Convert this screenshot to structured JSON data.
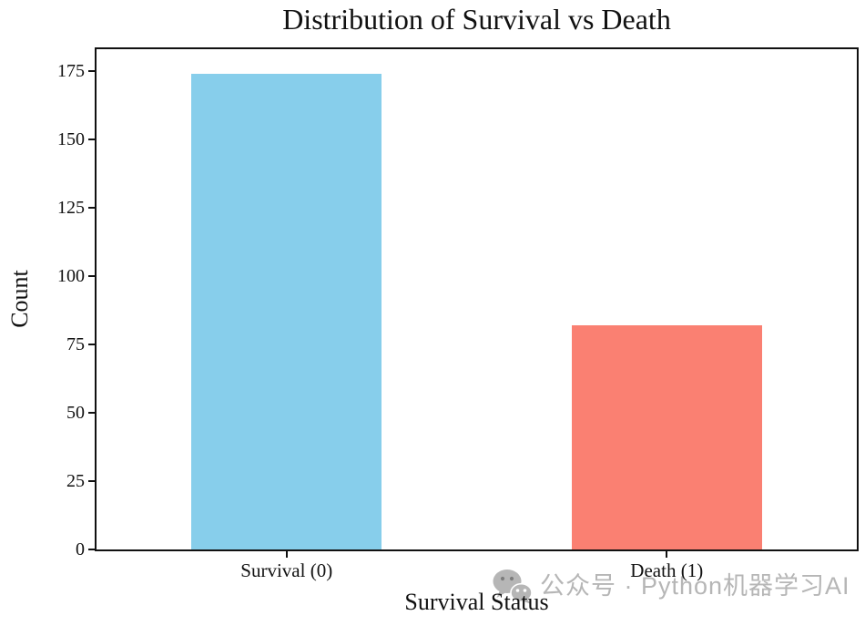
{
  "chart_data": {
    "type": "bar",
    "title": "Distribution of Survival vs Death",
    "xlabel": "Survival Status",
    "ylabel": "Count",
    "categories": [
      "Survival (0)",
      "Death (1)"
    ],
    "values": [
      174,
      82
    ],
    "bar_colors": [
      "#87CEEB",
      "#FA8072"
    ],
    "yticks": [
      0,
      25,
      50,
      75,
      100,
      125,
      150,
      175
    ],
    "ylim": [
      0,
      183
    ],
    "grid": false,
    "legend_position": "none",
    "axis_color": "#111111"
  },
  "watermark": {
    "icon": "wechat-icon",
    "text": "公众号 · Python机器学习AI",
    "color": "#b6b6b6"
  }
}
